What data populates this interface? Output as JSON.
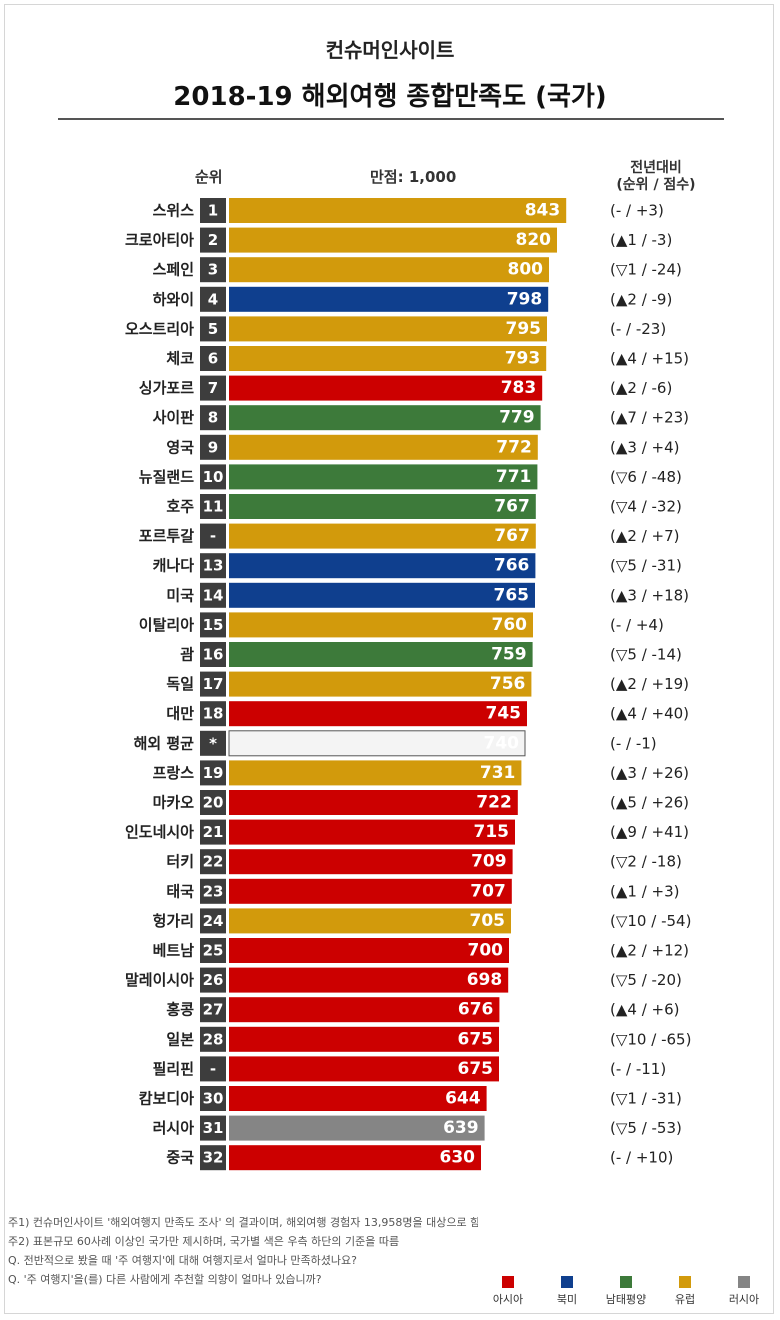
{
  "header": {
    "source": "컨슈머인사이트",
    "title": "2018-19 해외여행 종합만족도 (국가)",
    "rank_col": "순위",
    "full_score": "만점: 1,000",
    "change_col_line1": "전년대비",
    "change_col_line2": "(순위 / 점수)"
  },
  "colors": {
    "아시아": "#cc0000",
    "북미": "#0f3f8e",
    "남태평양": "#3d7a3a",
    "유럽": "#d29a0c",
    "러시아": "#858585",
    "평균": "#f4f4f4"
  },
  "chart_data": {
    "type": "bar",
    "orientation": "horizontal",
    "title": "2018-19 해외여행 종합만족도 (국가)",
    "value_max": 1000,
    "categories": [
      "스위스",
      "크로아티아",
      "스페인",
      "하와이",
      "오스트리아",
      "체코",
      "싱가포르",
      "사이판",
      "영국",
      "뉴질랜드",
      "호주",
      "포르투갈",
      "캐나다",
      "미국",
      "이탈리아",
      "괌",
      "독일",
      "대만",
      "해외 평균",
      "프랑스",
      "마카오",
      "인도네시아",
      "터키",
      "태국",
      "헝가리",
      "베트남",
      "말레이시아",
      "홍콩",
      "일본",
      "필리핀",
      "캄보디아",
      "러시아",
      "중국"
    ],
    "ranks": [
      "1",
      "2",
      "3",
      "4",
      "5",
      "6",
      "7",
      "8",
      "9",
      "10",
      "11",
      "-",
      "13",
      "14",
      "15",
      "16",
      "17",
      "18",
      "*",
      "19",
      "20",
      "21",
      "22",
      "23",
      "24",
      "25",
      "26",
      "27",
      "28",
      "-",
      "30",
      "31",
      "32"
    ],
    "values": [
      843,
      820,
      800,
      798,
      795,
      793,
      783,
      779,
      772,
      771,
      767,
      767,
      766,
      765,
      760,
      759,
      756,
      745,
      740,
      731,
      722,
      715,
      709,
      707,
      705,
      700,
      698,
      676,
      675,
      675,
      644,
      639,
      630
    ],
    "regions": [
      "유럽",
      "유럽",
      "유럽",
      "북미",
      "유럽",
      "유럽",
      "아시아",
      "남태평양",
      "유럽",
      "남태평양",
      "남태평양",
      "유럽",
      "북미",
      "북미",
      "유럽",
      "남태평양",
      "유럽",
      "아시아",
      "평균",
      "유럽",
      "아시아",
      "아시아",
      "아시아",
      "아시아",
      "유럽",
      "아시아",
      "아시아",
      "아시아",
      "아시아",
      "아시아",
      "아시아",
      "러시아",
      "아시아"
    ],
    "change": [
      "(- / +3)",
      "(▲1 / -3)",
      "(▽1 / -24)",
      "(▲2 / -9)",
      "(- / -23)",
      "(▲4 / +15)",
      "(▲2 / -6)",
      "(▲7 / +23)",
      "(▲3 / +4)",
      "(▽6 / -48)",
      "(▽4 / -32)",
      "(▲2 / +7)",
      "(▽5 / -31)",
      "(▲3 / +18)",
      "(- / +4)",
      "(▽5 / -14)",
      "(▲2 / +19)",
      "(▲4 / +40)",
      "(- / -1)",
      "(▲3 / +26)",
      "(▲5 / +26)",
      "(▲9 / +41)",
      "(▽2 / -18)",
      "(▲1 / +3)",
      "(▽10 / -54)",
      "(▲2 / +12)",
      "(▽5 / -20)",
      "(▲4 / +6)",
      "(▽10 / -65)",
      "(- / -11)",
      "(▽1 / -31)",
      "(▽5 / -53)",
      "(- / +10)"
    ]
  },
  "notes": [
    "주1) 컨슈머인사이트 '해외여행지 만족도 조사' 의 결과이며, 해외여행 경험자 13,958명을 대상으로 함",
    "주2) 표본규모 60사례 이상인 국가만 제시하며, 국가별 색은 우측 하단의 기준을 따름",
    "Q. 전반적으로 봤을 때 '주 여행지'에 대해 여행지로서 얼마나 만족하셨나요?",
    "Q. '주 여행지'을(를) 다른 사람에게 추천할 의향이 얼마나 있습니까?"
  ],
  "legend": [
    {
      "label": "아시아",
      "color": "#cc0000"
    },
    {
      "label": "북미",
      "color": "#0f3f8e"
    },
    {
      "label": "남태평양",
      "color": "#3d7a3a"
    },
    {
      "label": "유럽",
      "color": "#d29a0c"
    },
    {
      "label": "러시아",
      "color": "#858585"
    }
  ]
}
